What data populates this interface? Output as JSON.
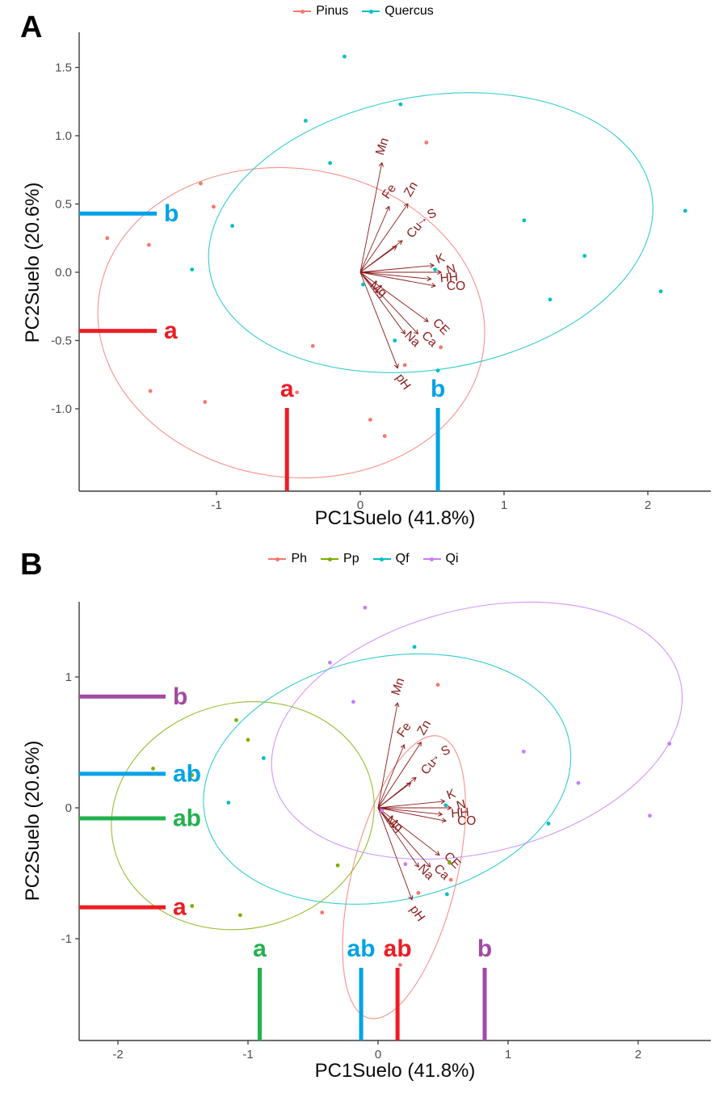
{
  "chart_data": {
    "type": "scatter",
    "description": "PCA biplots (soil variables) with confidence ellipses, loading arrows and group mean annotation lines",
    "loadings": {
      "color": "#8B1A1A",
      "arrows": [
        {
          "label": "Mn",
          "x": 0.15,
          "y": 0.8,
          "rot": -72,
          "dx": 5,
          "dy": -19
        },
        {
          "label": "Fe",
          "x": 0.2,
          "y": 0.48,
          "rot": -55,
          "dx": 4,
          "dy": -16
        },
        {
          "label": "Zn",
          "x": 0.33,
          "y": 0.5,
          "rot": -60,
          "dx": 8,
          "dy": -16
        },
        {
          "label": "Cu",
          "x": 0.25,
          "y": 0.19,
          "rot": -50,
          "dx": 26,
          "dy": -17
        },
        {
          "label": "S",
          "x": 0.29,
          "y": 0.23,
          "rot": -25,
          "dx": 39,
          "dy": -29
        },
        {
          "label": "→",
          "x": 0.44,
          "y": 0.36,
          "rot": -35,
          "dx": 0,
          "dy": 0,
          "glyph_only": true
        },
        {
          "label": "K",
          "x": 0.51,
          "y": 0.05,
          "rot": -20,
          "dx": 10,
          "dy": -4
        },
        {
          "label": "N",
          "x": 0.56,
          "y": 0.0,
          "rot": -15,
          "dx": 14,
          "dy": 1
        },
        {
          "label": "HH",
          "x": 0.49,
          "y": -0.05,
          "rot": -5,
          "dx": 23,
          "dy": 3
        },
        {
          "label": "CO",
          "x": 0.52,
          "y": -0.1,
          "rot": 0,
          "dx": 26,
          "dy": 5
        },
        {
          "label": "Mg",
          "x": 0.12,
          "y": -0.15,
          "rot": 42,
          "dx": -2,
          "dy": -1
        },
        {
          "label": "CE",
          "x": 0.47,
          "y": -0.36,
          "rot": 45,
          "dx": 13,
          "dy": 10
        },
        {
          "label": "Ca",
          "x": 0.4,
          "y": -0.45,
          "rot": 45,
          "dx": 11,
          "dy": 10
        },
        {
          "label": "Na",
          "x": 0.31,
          "y": -0.45,
          "rot": 45,
          "dx": 6,
          "dy": 10
        },
        {
          "label": "pH",
          "x": 0.26,
          "y": -0.7,
          "rot": 55,
          "dx": 3,
          "dy": 20
        }
      ]
    },
    "panels": [
      {
        "id": "A",
        "panel_letter": "A",
        "x_title": "PC1Suelo (41.8%)",
        "y_title": "PC2Suelo (20.6%)",
        "x_tick_values": [
          -1,
          0,
          1,
          2
        ],
        "x_tick_labels": [
          "-1",
          "0",
          "1",
          "2"
        ],
        "y_tick_values": [
          1.5,
          1.0,
          0.5,
          0.0,
          -0.5,
          -1.0
        ],
        "y_tick_labels": [
          "1.5",
          "1.0",
          "0.5",
          "0.0",
          "-0.5",
          "-1.0"
        ],
        "xlim": [
          -1.96,
          2.44
        ],
        "ylim": [
          -1.6,
          1.77
        ],
        "legend_position": "top",
        "series": [
          {
            "name": "Pinus",
            "color": "#F8766D",
            "ellipse": {
              "cx": -0.48,
              "cy": -0.37,
              "rx": 1.35,
              "ry": 1.13,
              "rot": 8
            },
            "points": [
              [
                -1.76,
                0.25
              ],
              [
                -1.47,
                0.2
              ],
              [
                -1.11,
                0.65
              ],
              [
                -1.02,
                0.48
              ],
              [
                0.46,
                0.95
              ],
              [
                -0.33,
                -0.54
              ],
              [
                0.56,
                -0.55
              ],
              [
                0.31,
                -0.68
              ],
              [
                -1.46,
                -0.87
              ],
              [
                -1.08,
                -0.95
              ],
              [
                -0.44,
                -0.88
              ],
              [
                0.07,
                -1.08
              ],
              [
                0.17,
                -1.2
              ]
            ]
          },
          {
            "name": "Quercus",
            "color": "#00BFC4",
            "ellipse": {
              "cx": 0.49,
              "cy": 0.29,
              "rx": 1.56,
              "ry": 1.0,
              "rot": -10
            },
            "points": [
              [
                -0.11,
                1.58
              ],
              [
                0.28,
                1.23
              ],
              [
                -0.38,
                1.11
              ],
              [
                -0.21,
                0.8
              ],
              [
                -0.89,
                0.34
              ],
              [
                1.14,
                0.38
              ],
              [
                2.26,
                0.45
              ],
              [
                1.56,
                0.12
              ],
              [
                -1.17,
                0.02
              ],
              [
                0.52,
                0.02
              ],
              [
                0.02,
                -0.09
              ],
              [
                1.32,
                -0.2
              ],
              [
                2.09,
                -0.14
              ],
              [
                0.24,
                -0.5
              ],
              [
                0.54,
                -0.72
              ]
            ]
          }
        ],
        "mean_lines_y": [
          {
            "label": "b",
            "color": "#00A2E8",
            "value": 0.43
          },
          {
            "label": "a",
            "color": "#ED1C24",
            "value": -0.43
          }
        ],
        "mean_lines_x": [
          {
            "label": "a",
            "color": "#ED1C24",
            "value": -0.51
          },
          {
            "label": "b",
            "color": "#00A2E8",
            "value": 0.54
          }
        ]
      },
      {
        "id": "B",
        "panel_letter": "B",
        "x_title": "PC1Suelo (41.8%)",
        "y_title": "PC2Suelo (20.6%)",
        "x_tick_values": [
          -2,
          -1,
          0,
          1,
          2
        ],
        "x_tick_labels": [
          "-2",
          "-1",
          "0",
          "1",
          "2"
        ],
        "y_tick_values": [
          1,
          0,
          -1
        ],
        "y_tick_labels": [
          "1",
          "0",
          "-1"
        ],
        "xlim": [
          -2.3,
          2.56
        ],
        "ylim": [
          -1.78,
          1.57
        ],
        "legend_position": "top",
        "series": [
          {
            "name": "Ph",
            "color": "#F8766D",
            "ellipse": {
              "cx": 0.2,
              "cy": -0.53,
              "rx": 0.4,
              "ry": 1.11,
              "rot": 14
            },
            "points": [
              [
                0.46,
                0.94
              ],
              [
                0.56,
                -0.55
              ],
              [
                0.31,
                -0.65
              ],
              [
                -0.43,
                -0.8
              ],
              [
                0.07,
                -1.08
              ],
              [
                0.17,
                -1.2
              ]
            ]
          },
          {
            "name": "Pp",
            "color": "#7CAE00",
            "ellipse": {
              "cx": -1.04,
              "cy": -0.06,
              "rx": 1.02,
              "ry": 0.86,
              "rot": -15
            },
            "points": [
              [
                -1.73,
                0.3
              ],
              [
                -1.43,
                0.25
              ],
              [
                -1.09,
                0.67
              ],
              [
                -1.0,
                0.52
              ],
              [
                -1.43,
                -0.75
              ],
              [
                -1.06,
                -0.82
              ],
              [
                -0.31,
                -0.44
              ],
              [
                0.55,
                -0.42
              ]
            ]
          },
          {
            "name": "Qf",
            "color": "#00BFC4",
            "ellipse": {
              "cx": 0.07,
              "cy": 0.22,
              "rx": 1.43,
              "ry": 0.93,
              "rot": -12
            },
            "points": [
              [
                0.28,
                1.23
              ],
              [
                -0.88,
                0.38
              ],
              [
                -1.15,
                0.04
              ],
              [
                0.52,
                0.02
              ],
              [
                1.31,
                -0.12
              ],
              [
                0.53,
                -0.66
              ]
            ]
          },
          {
            "name": "Qi",
            "color": "#C77CFF",
            "ellipse": {
              "cx": 0.76,
              "cy": 0.59,
              "rx": 1.61,
              "ry": 0.93,
              "rot": -14
            },
            "points": [
              [
                -0.1,
                1.53
              ],
              [
                -0.37,
                1.11
              ],
              [
                -0.19,
                0.81
              ],
              [
                1.12,
                0.43
              ],
              [
                2.24,
                0.49
              ],
              [
                1.54,
                0.19
              ],
              [
                0.03,
                -0.02
              ],
              [
                0.21,
                -0.43
              ],
              [
                2.09,
                -0.06
              ]
            ]
          }
        ],
        "mean_lines_y": [
          {
            "label": "b",
            "color": "#A349A4",
            "value": 0.85
          },
          {
            "label": "ab",
            "color": "#00A2E8",
            "value": 0.26
          },
          {
            "label": "ab",
            "color": "#22B14C",
            "value": -0.08
          },
          {
            "label": "a",
            "color": "#ED1C24",
            "value": -0.76
          }
        ],
        "mean_lines_x": [
          {
            "label": "a",
            "color": "#22B14C",
            "value": -0.91
          },
          {
            "label": "ab",
            "color": "#00A2E8",
            "value": -0.13
          },
          {
            "label": "ab",
            "color": "#ED1C24",
            "value": 0.15
          },
          {
            "label": "b",
            "color": "#A349A4",
            "value": 0.82
          }
        ]
      }
    ],
    "style": {
      "axis_text_color": "#4D4D4D",
      "axis_line_color": "#3C3C3C",
      "background": "#FFFFFF"
    }
  }
}
